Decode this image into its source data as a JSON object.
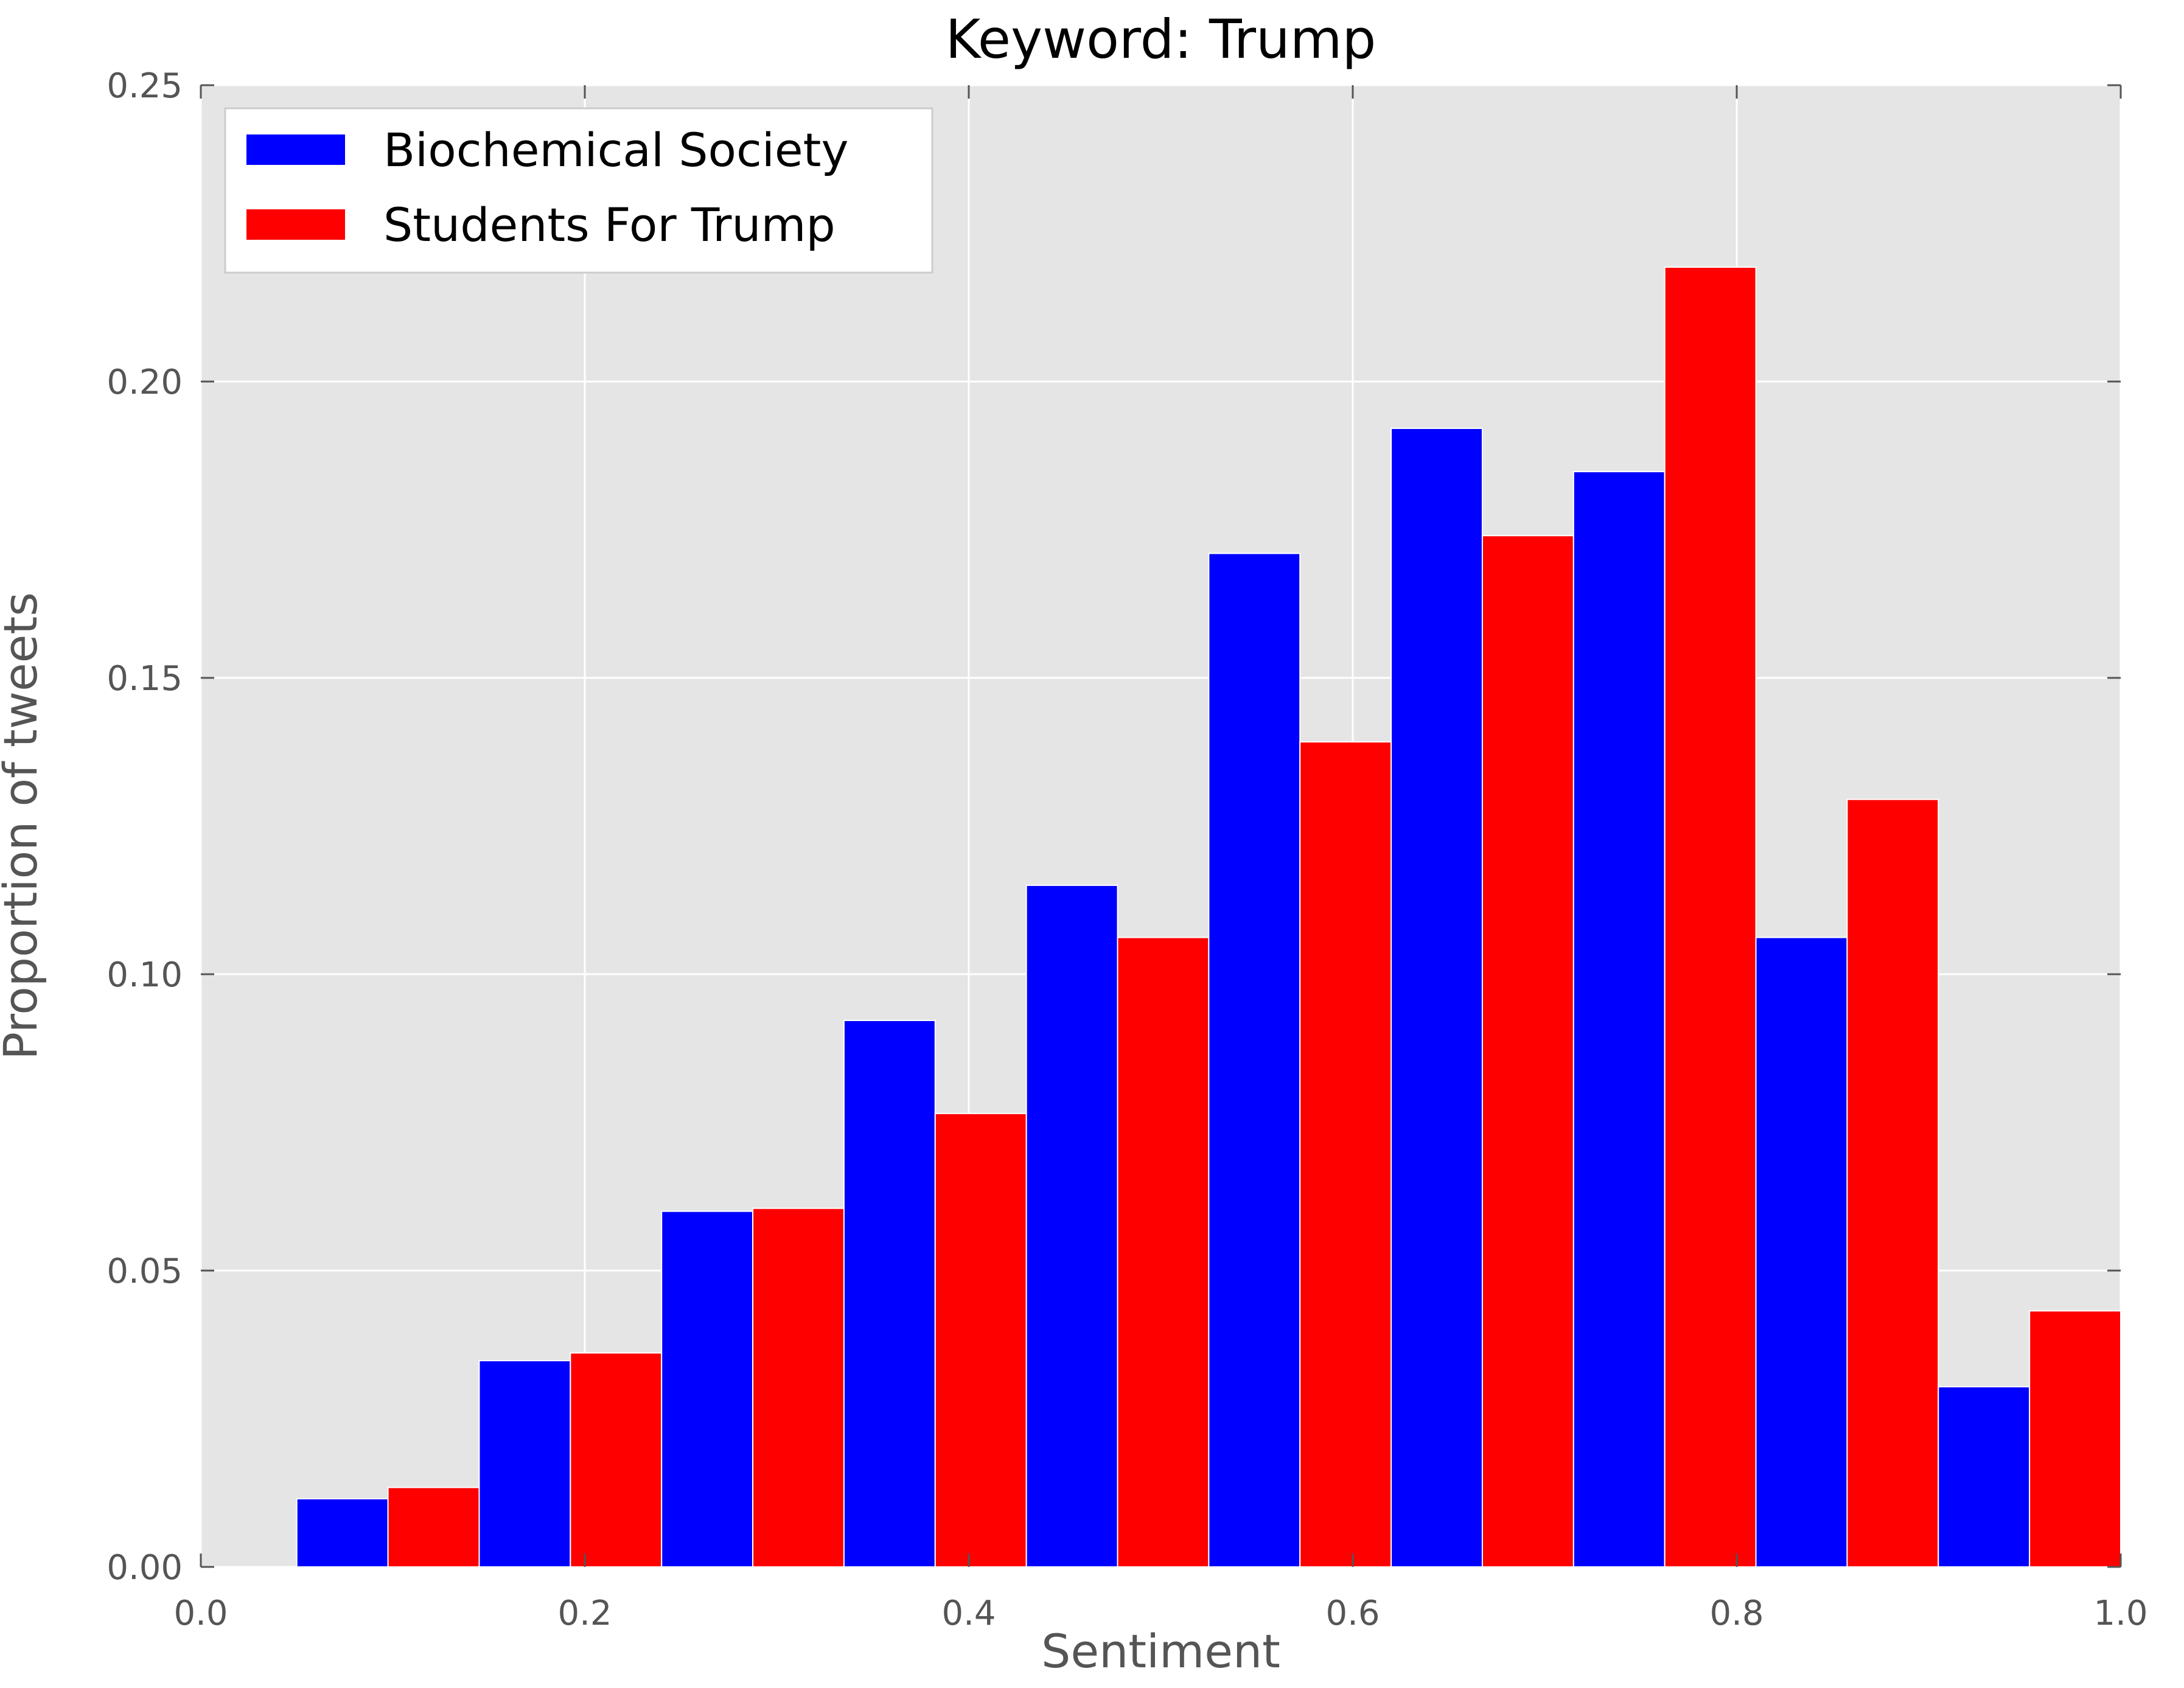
{
  "chart_data": {
    "type": "bar",
    "title": "Keyword: Trump",
    "xlabel": "Sentiment",
    "ylabel": "Proportion of tweets",
    "xlim": [
      0.0,
      1.0
    ],
    "ylim": [
      0.0,
      0.25
    ],
    "xticks": [
      "0.0",
      "0.2",
      "0.4",
      "0.6",
      "0.8",
      "1.0"
    ],
    "yticks": [
      "0.00",
      "0.05",
      "0.10",
      "0.15",
      "0.20",
      "0.25"
    ],
    "grid": true,
    "legend_position": "top-left",
    "bins": [
      0.05,
      0.145,
      0.24,
      0.335,
      0.43,
      0.525,
      0.62,
      0.715,
      0.81,
      0.905
    ],
    "bin_width": 0.095,
    "series": [
      {
        "name": "Biochemical Society",
        "color": "#0000ff",
        "values": [
          0.0115,
          0.0348,
          0.06,
          0.0922,
          0.115,
          0.171,
          0.1921,
          0.1848,
          0.1062,
          0.0304
        ]
      },
      {
        "name": "Students For Trump",
        "color": "#ff0000",
        "values": [
          0.0134,
          0.0361,
          0.0605,
          0.0765,
          0.1062,
          0.1392,
          0.174,
          0.2193,
          0.1295,
          0.0432
        ]
      }
    ],
    "plot_background": "#e5e5e5",
    "grid_color": "#ffffff"
  }
}
